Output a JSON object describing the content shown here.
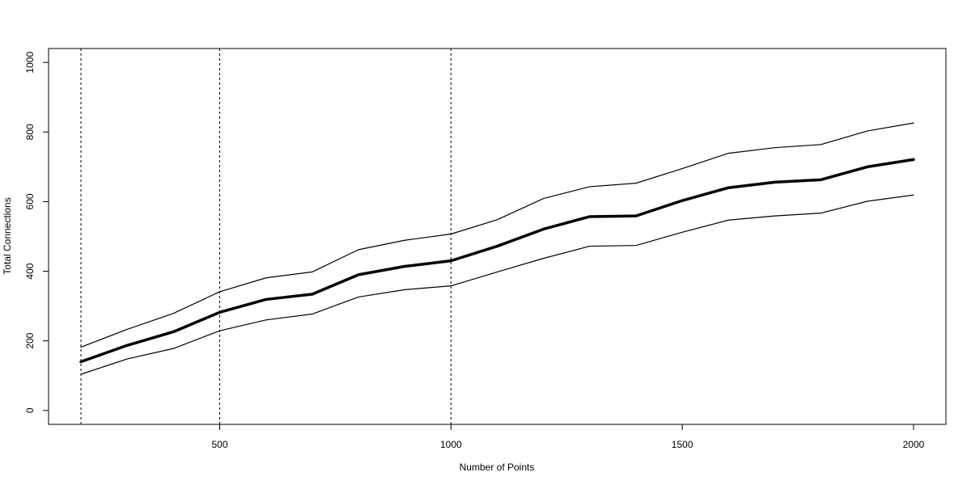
{
  "chart_data": {
    "type": "line",
    "title": "",
    "xlabel": "Number of Points",
    "ylabel": "Total Connections",
    "xlim": [
      130,
      2070
    ],
    "ylim": [
      -40,
      1040
    ],
    "x_ticks": [
      500,
      1000,
      1500,
      2000
    ],
    "y_ticks": [
      0,
      200,
      400,
      600,
      800,
      1000
    ],
    "grid": false,
    "legend": "none",
    "vlines": [
      200,
      500,
      1000
    ],
    "x": [
      200,
      300,
      400,
      500,
      600,
      700,
      800,
      900,
      1000,
      1100,
      1200,
      1300,
      1400,
      1500,
      1600,
      1700,
      1800,
      1900,
      2000
    ],
    "series": [
      {
        "role": "upper",
        "values": [
          182,
          233,
          279,
          341,
          381,
          398,
          462,
          489,
          507,
          548,
          609,
          643,
          653,
          695,
          739,
          755,
          764,
          803,
          826
        ]
      },
      {
        "role": "mean",
        "values": [
          140,
          187,
          226,
          282,
          319,
          334,
          390,
          414,
          430,
          472,
          521,
          557,
          559,
          603,
          640,
          656,
          663,
          700,
          721
        ]
      },
      {
        "role": "lower",
        "values": [
          104,
          148,
          178,
          229,
          260,
          277,
          326,
          347,
          358,
          398,
          437,
          472,
          474,
          512,
          547,
          559,
          567,
          601,
          619
        ]
      }
    ],
    "colors": {
      "line": "#000000",
      "frame": "#000000",
      "background": "#ffffff"
    }
  }
}
